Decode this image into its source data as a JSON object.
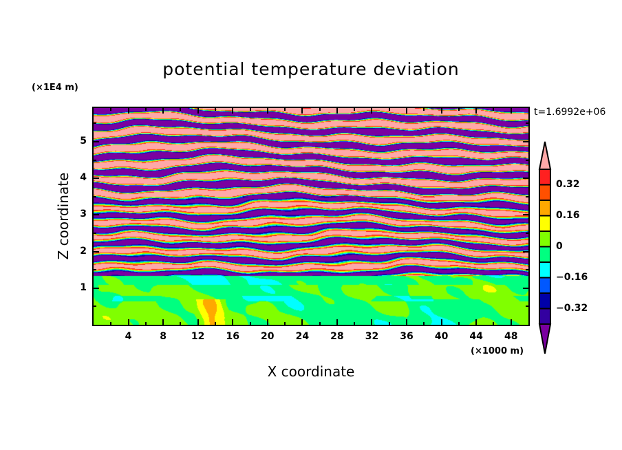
{
  "chart_data": {
    "type": "heatmap",
    "title": "potential temperature deviation",
    "xlabel": "X coordinate",
    "ylabel": "Z coordinate",
    "x_unit": "(×1000 m)",
    "y_unit": "(×1E4 m)",
    "time_label": "t=1.6992e+06",
    "xlim": [
      0,
      50
    ],
    "ylim": [
      0,
      5.92
    ],
    "x_ticks": [
      4,
      8,
      12,
      16,
      20,
      24,
      28,
      32,
      36,
      40,
      44,
      48
    ],
    "y_ticks": [
      1,
      2,
      3,
      4,
      5
    ],
    "x_tick_labels": [
      "4",
      "8",
      "12",
      "16",
      "20",
      "24",
      "28",
      "32",
      "36",
      "40",
      "44",
      "48"
    ],
    "y_tick_labels": [
      "1",
      "2",
      "3",
      "4",
      "5"
    ],
    "levels": [
      -0.4,
      -0.32,
      -0.24,
      -0.16,
      -0.08,
      0,
      0.08,
      0.16,
      0.24,
      0.32,
      0.4
    ],
    "colors": [
      "#7a00a0",
      "#3300a0",
      "#0000a8",
      "#0058ff",
      "#00ffff",
      "#00ff80",
      "#80ff00",
      "#ffff00",
      "#ffa800",
      "#ff5000",
      "#ff2020",
      "#ffa8a8"
    ],
    "colorbar_labels": [
      {
        "value": 0.32,
        "text": "0.32"
      },
      {
        "value": 0.16,
        "text": "0.16"
      },
      {
        "value": 0,
        "text": "0"
      },
      {
        "value": -0.16,
        "text": "−0.16"
      },
      {
        "value": -0.32,
        "text": "−0.32"
      }
    ],
    "description_regions": {
      "stratified_layer_bottom_z": 1.35
    }
  }
}
